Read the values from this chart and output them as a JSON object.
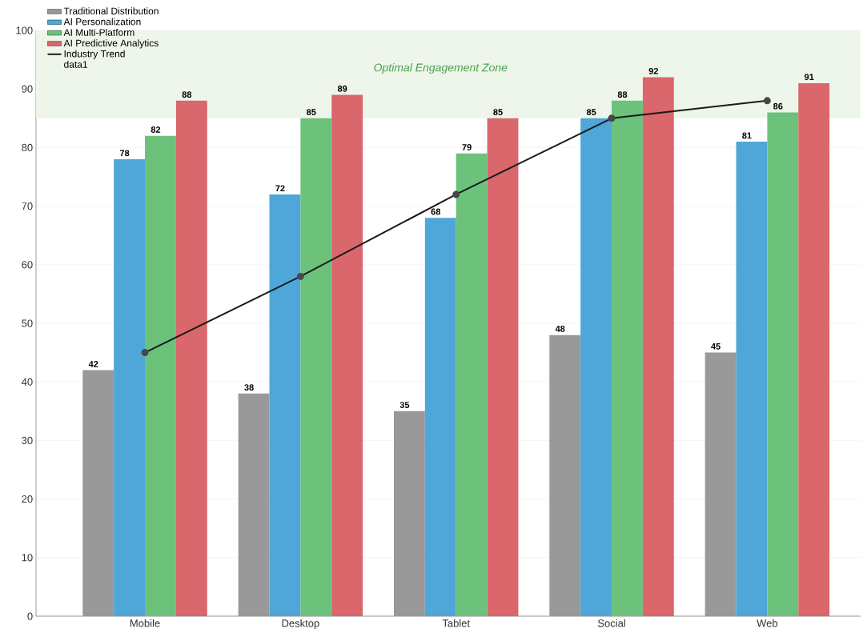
{
  "chart_data": {
    "type": "bar",
    "categories": [
      "Mobile",
      "Desktop",
      "Tablet",
      "Social",
      "Web"
    ],
    "series": [
      {
        "name": "Traditional Distribution",
        "color": "#999999",
        "values": [
          42,
          38,
          35,
          48,
          45
        ],
        "value_labels": [
          "42",
          "38",
          "35",
          "48",
          "45"
        ]
      },
      {
        "name": "AI Personalization",
        "color": "#4ea7d8",
        "values": [
          78,
          72,
          68,
          85,
          81
        ],
        "value_labels": [
          "78",
          "72",
          "68",
          "85",
          "81"
        ]
      },
      {
        "name": "AI Multi-Platform",
        "color": "#6cc27b",
        "values": [
          82,
          85,
          79,
          88,
          86
        ],
        "value_labels": [
          "82",
          "85",
          "79",
          "88",
          "86"
        ]
      },
      {
        "name": "AI Predictive Analytics",
        "color": "#d9676b",
        "values": [
          88,
          89,
          85,
          92,
          91
        ],
        "value_labels": [
          "88",
          "89",
          "85",
          "92",
          "91"
        ]
      },
      {
        "name": "Industry Trend",
        "type": "line",
        "color": "#1a1a1a",
        "marker": "circle",
        "line_style": "solid",
        "values": [
          45,
          58,
          72,
          85,
          88
        ]
      }
    ],
    "bands": [
      {
        "axis": "y",
        "from": 85,
        "to": 100,
        "label": "Optimal Engagement Zone",
        "color": "#eef6eb"
      }
    ],
    "annotations": [
      "data1"
    ],
    "ylim": [
      0,
      100
    ],
    "yticks": [
      0,
      10,
      20,
      30,
      40,
      50,
      60,
      70,
      80,
      90,
      100
    ],
    "grid": "y",
    "legend": "top left"
  }
}
